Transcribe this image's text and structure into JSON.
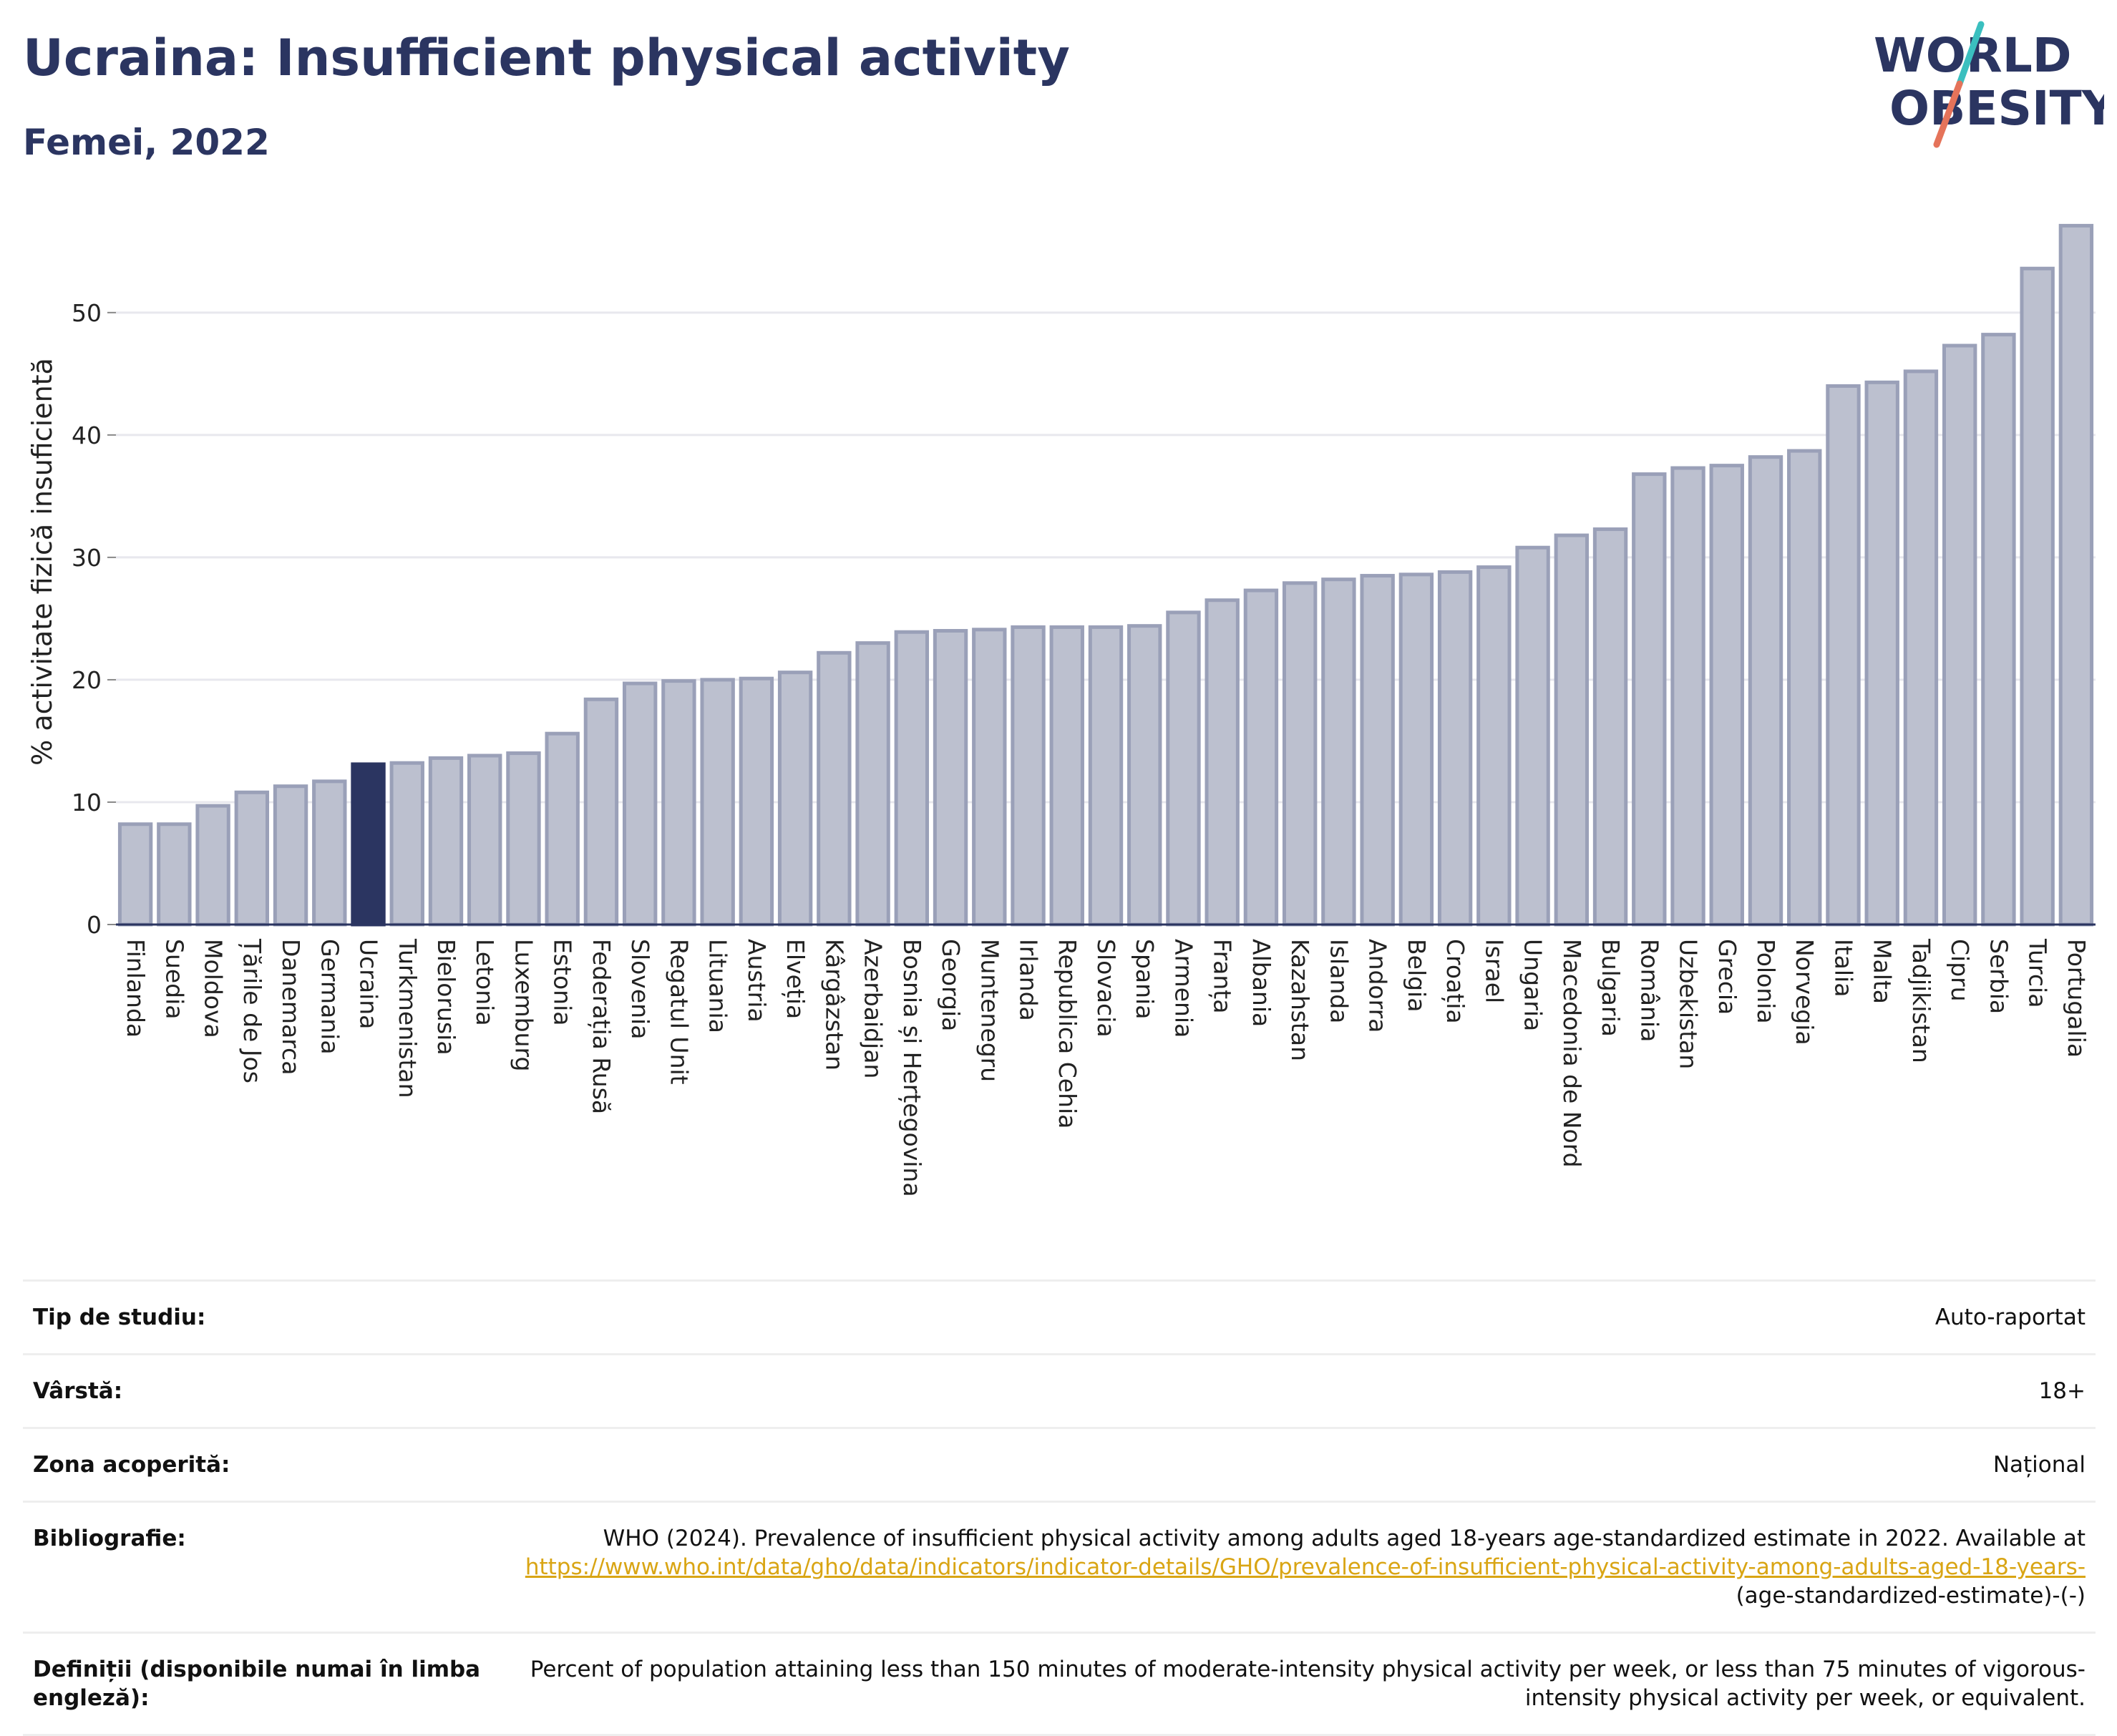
{
  "header": {
    "title": "Ucraina: Insufficient physical activity",
    "subtitle": "Femei, 2022"
  },
  "logo": {
    "line1": "WORLD",
    "line2": "OBESITY",
    "colors": {
      "text": "#2b3561",
      "slash_teal": "#3bbfbf",
      "slash_red": "#e5735a"
    }
  },
  "colors": {
    "bar": "#bcc0cf",
    "bar_border": "#9aa0b8",
    "highlight": "#2b3561",
    "grid": "#e8e8ee",
    "axis": "#2b3561"
  },
  "chart_data": {
    "type": "bar",
    "title": "Ucraina: Insufficient physical activity",
    "subtitle": "Femei, 2022",
    "xlabel": "",
    "ylabel": "% activitate fizică insuficientă",
    "ylim": [
      0,
      58
    ],
    "yticks": [
      0,
      10,
      20,
      30,
      40,
      50
    ],
    "grid": true,
    "highlight": "Ucraina",
    "categories": [
      "Finlanda",
      "Suedia",
      "Moldova",
      "Țările de Jos",
      "Danemarca",
      "Germania",
      "Ucraina",
      "Turkmenistan",
      "Bielorusia",
      "Letonia",
      "Luxemburg",
      "Estonia",
      "Federația Rusă",
      "Slovenia",
      "Regatul Unit",
      "Lituania",
      "Austria",
      "Elveția",
      "Kârgâzstan",
      "Azerbaidjan",
      "Bosnia și Herțegovina",
      "Georgia",
      "Muntenegru",
      "Irlanda",
      "Republica Cehia",
      "Slovacia",
      "Spania",
      "Armenia",
      "Franța",
      "Albania",
      "Kazahstan",
      "Islanda",
      "Andorra",
      "Belgia",
      "Croația",
      "Israel",
      "Ungaria",
      "Macedonia de Nord",
      "Bulgaria",
      "România",
      "Uzbekistan",
      "Grecia",
      "Polonia",
      "Norvegia",
      "Italia",
      "Malta",
      "Tadjikistan",
      "Cipru",
      "Serbia",
      "Turcia",
      "Portugalia"
    ],
    "values": [
      8.2,
      8.2,
      9.7,
      10.8,
      11.3,
      11.7,
      13.1,
      13.2,
      13.6,
      13.8,
      14.0,
      15.6,
      18.4,
      19.7,
      19.9,
      20.0,
      20.1,
      20.6,
      22.2,
      23.0,
      23.9,
      24.0,
      24.1,
      24.3,
      24.3,
      24.3,
      24.4,
      25.5,
      26.5,
      27.3,
      27.9,
      28.2,
      28.5,
      28.6,
      28.8,
      29.2,
      30.8,
      31.8,
      32.3,
      36.8,
      37.3,
      37.5,
      38.2,
      38.7,
      44.0,
      44.3,
      45.2,
      47.3,
      48.2,
      53.6,
      57.1
    ]
  },
  "meta": {
    "rows": [
      {
        "key": "Tip de studiu:",
        "value": "Auto-raportat"
      },
      {
        "key": "Vârstă:",
        "value": "18+"
      },
      {
        "key": "Zona acoperită:",
        "value": "Național"
      }
    ],
    "bibliography": {
      "key": "Bibliografie:",
      "text": "WHO (2024). Prevalence of insufficient physical activity among adults aged 18-years age-standardized estimate in 2022. Available at",
      "link": "https://www.who.int/data/gho/data/indicators/indicator-details/GHO/prevalence-of-insufficient-physical-activity-among-adults-aged-18-years-",
      "suffix": "(age-standardized-estimate)-(-)"
    },
    "definitions": {
      "key": "Definiții (disponibile numai în limba engleză):",
      "value": "Percent of population attaining less than 150 minutes of moderate-intensity physical activity per week, or less than 75 minutes of vigorous-intensity physical activity per week, or equivalent."
    }
  }
}
